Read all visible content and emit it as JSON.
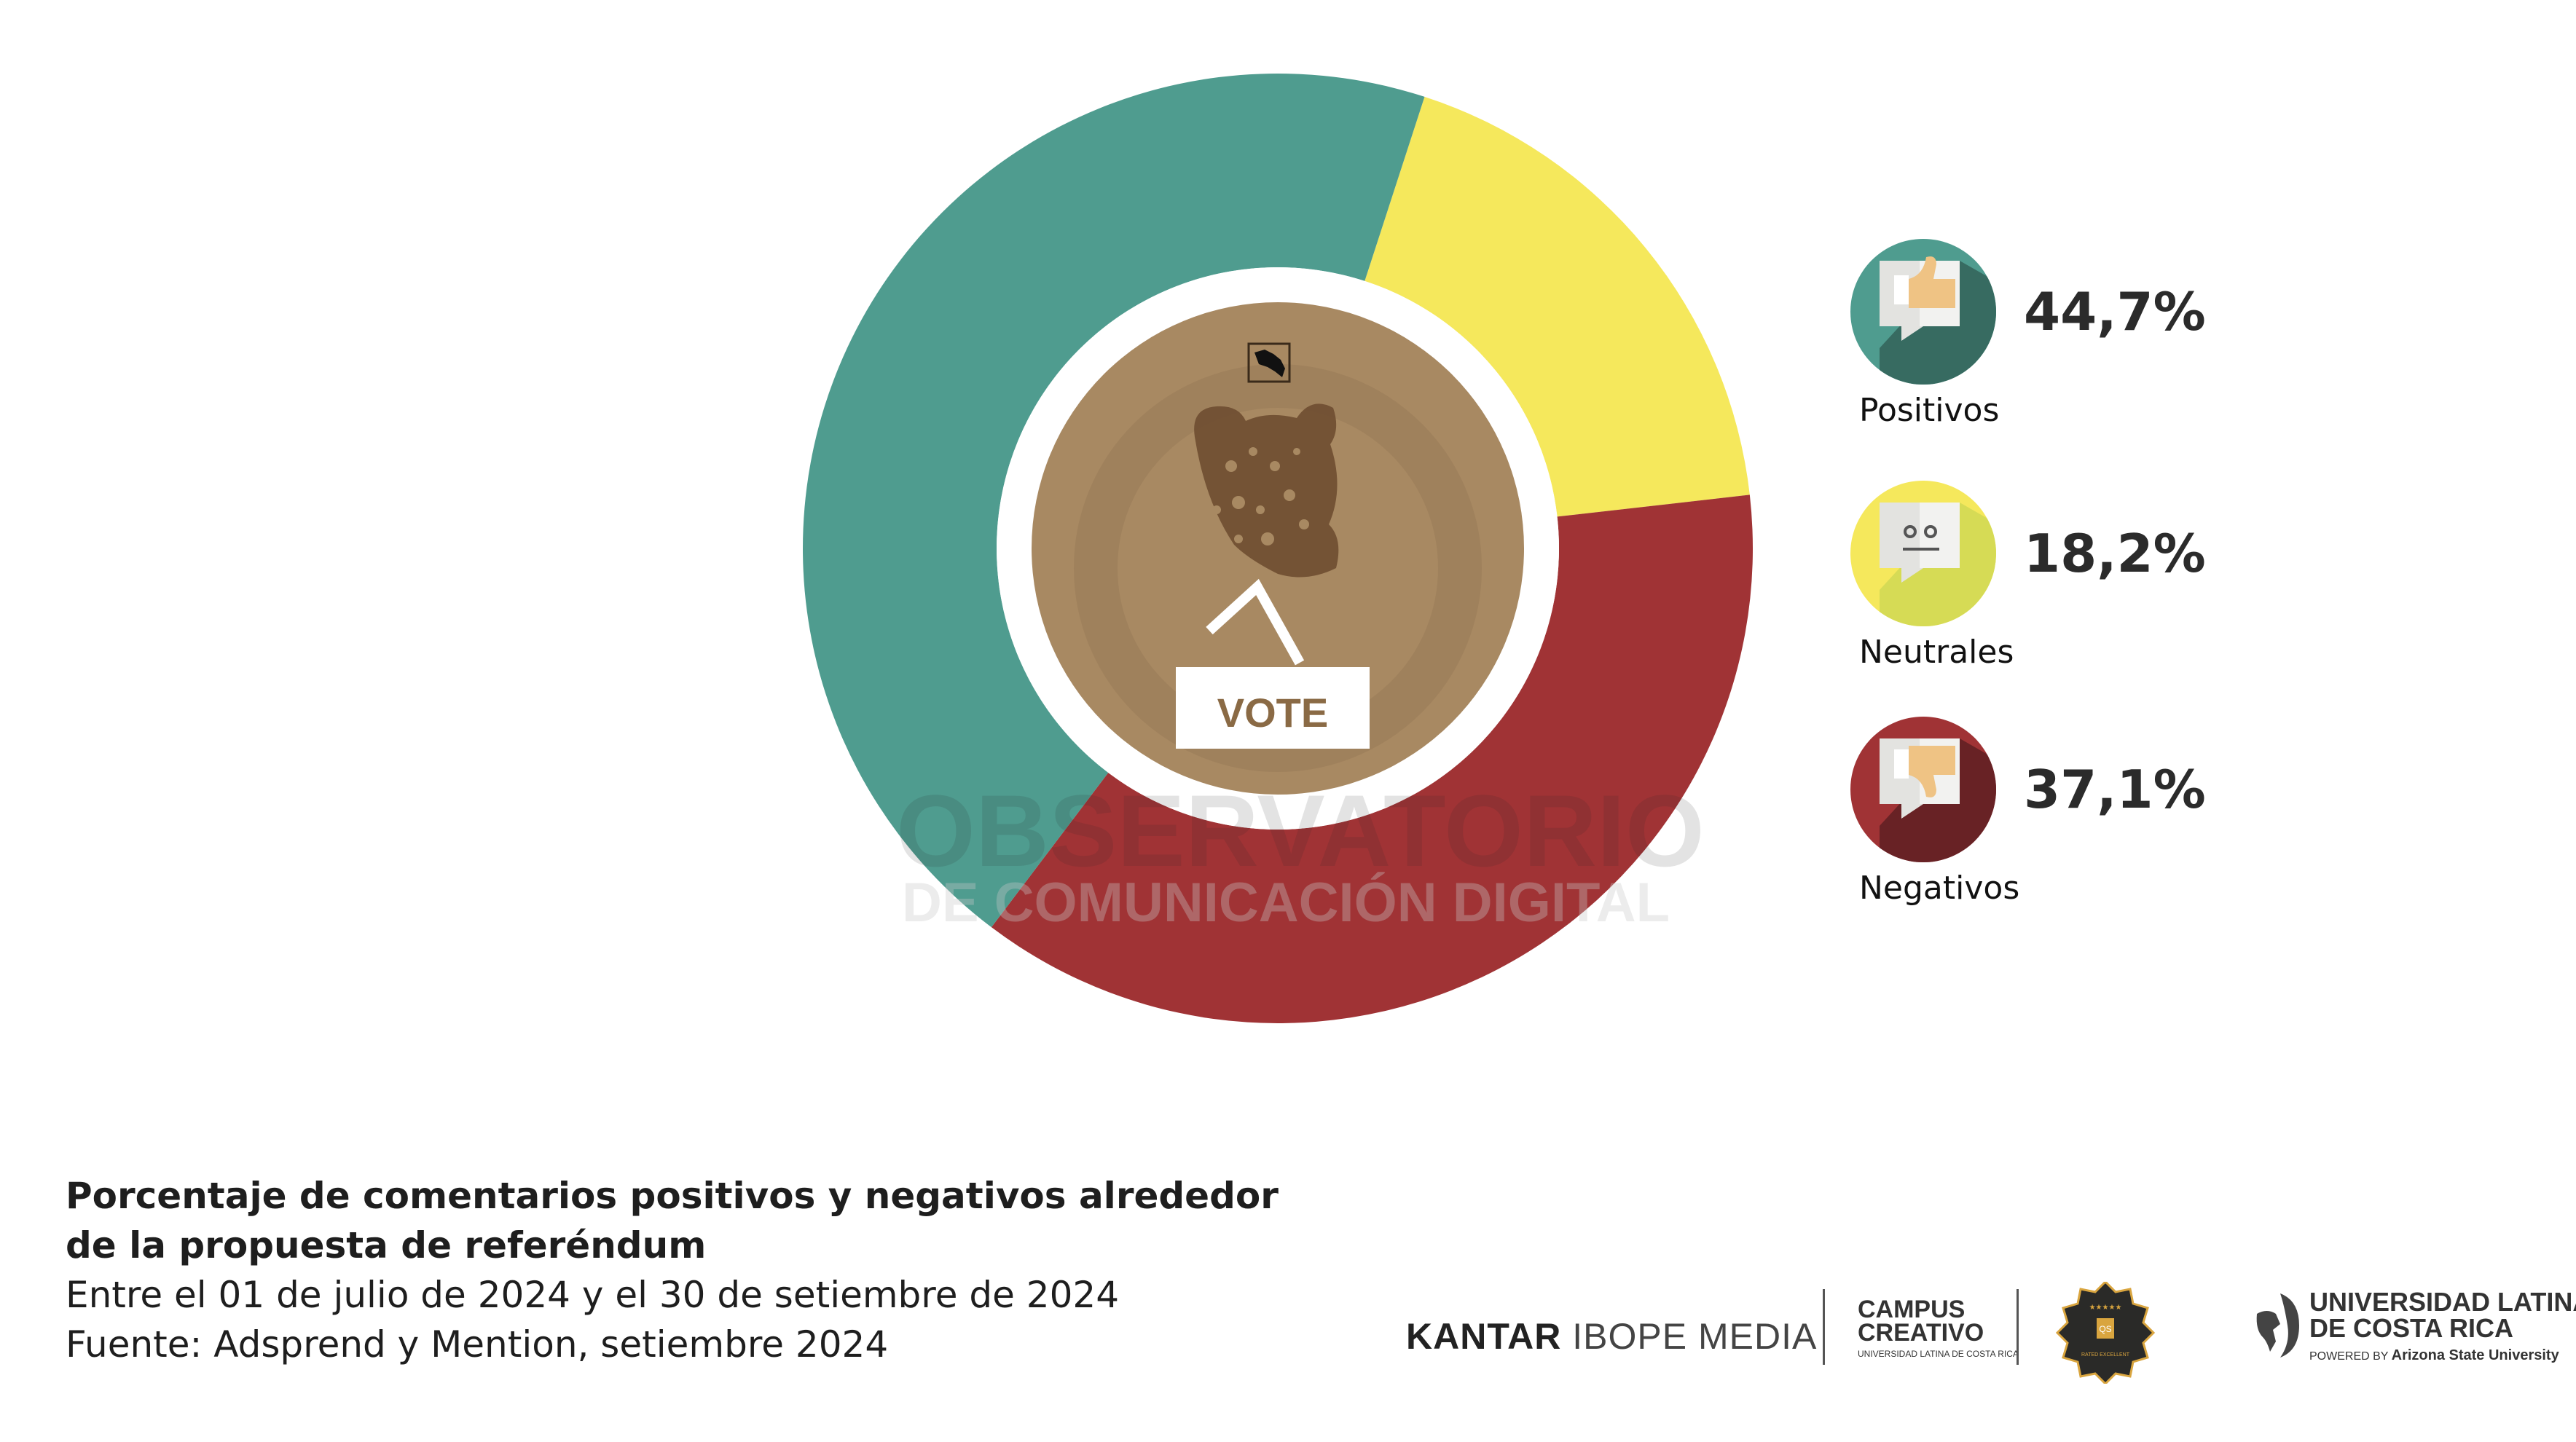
{
  "chart_data": {
    "type": "pie",
    "variant": "donut",
    "title": "Porcentaje de comentarios positivos y negativos alrededor de la propuesta de referéndum",
    "slices": [
      {
        "key": "neutral",
        "label": "Neutrales",
        "value": 18.2,
        "display": "18,2%",
        "color": "#f5e85c",
        "icon_bg": "#f5e85c",
        "icon_shadow": "#d6db55"
      },
      {
        "key": "negative",
        "label": "Negativos",
        "value": 37.1,
        "display": "37,1%",
        "color": "#a03335",
        "icon_bg": "#a03335",
        "icon_shadow": "#682225"
      },
      {
        "key": "positive",
        "label": "Positivos",
        "value": 44.7,
        "display": "44,7%",
        "color": "#4f9c8f",
        "icon_bg": "#4f9c8f",
        "icon_shadow": "#376b61"
      }
    ],
    "legend_placement": "right"
  },
  "legend": [
    {
      "label": "Positivos",
      "value": "44,7%",
      "icon": "thumbs-up-icon"
    },
    {
      "label": "Neutrales",
      "value": "18,2%",
      "icon": "neutral-face-icon"
    },
    {
      "label": "Negativos",
      "value": "37,1%",
      "icon": "thumbs-down-icon"
    }
  ],
  "center": {
    "vote_label": "VOTE",
    "center_color": "#a88962"
  },
  "watermark": {
    "line1": "OBSERVATORIO",
    "line2": "DE COMUNICACIÓN DIGITAL"
  },
  "caption": {
    "title_line1": "Porcentaje de comentarios positivos y negativos alrededor",
    "title_line2": "de la propuesta de referéndum",
    "period": "Entre el 01 de julio de 2024 y el 30 de setiembre de 2024",
    "source": "Fuente: Adsprend y Mention, setiembre 2024"
  },
  "logos": {
    "kantar_bold": "KANTAR",
    "kantar_rest": "IBOPE MEDIA",
    "campus_line1": "CAMPUS",
    "campus_line2": "CREATIVO",
    "campus_sub": "UNIVERSIDAD LATINA DE COSTA RICA",
    "qs_badge": "QS",
    "qs_rated": "RATED EXCELLENT",
    "ulatina_line1": "UNIVERSIDAD LATINA",
    "ulatina_line2": "DE COSTA RICA",
    "powered_by": "POWERED BY",
    "asu": "Arizona State University"
  }
}
